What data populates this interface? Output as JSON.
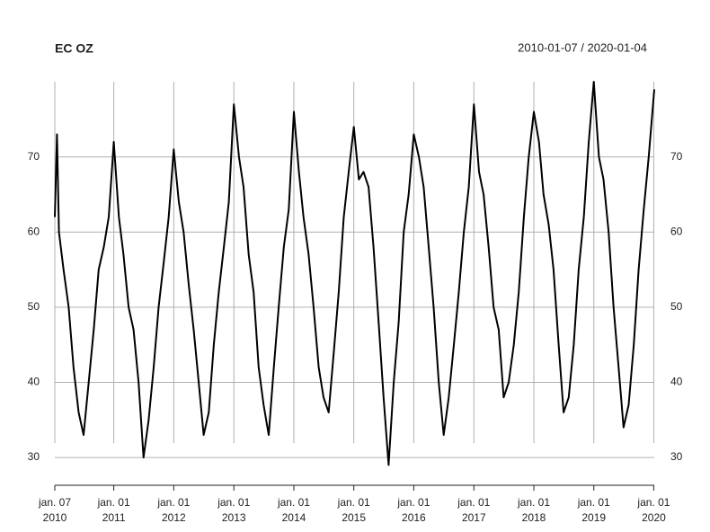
{
  "chart_data": {
    "type": "line",
    "title": "EC OZ",
    "subtitle": "2010-01-07 / 2020-01-04",
    "xlim": [
      "2010-01-07",
      "2020-01-04"
    ],
    "ylim": [
      26.3,
      80
    ],
    "yticks": [
      30,
      40,
      50,
      60,
      70
    ],
    "xticks": [
      {
        "value": "2010-01-07",
        "label": "jan. 07",
        "year": "2010"
      },
      {
        "value": "2011-01-01",
        "label": "jan. 01",
        "year": "2011"
      },
      {
        "value": "2012-01-01",
        "label": "jan. 01",
        "year": "2012"
      },
      {
        "value": "2013-01-01",
        "label": "jan. 01",
        "year": "2013"
      },
      {
        "value": "2014-01-01",
        "label": "jan. 01",
        "year": "2014"
      },
      {
        "value": "2015-01-01",
        "label": "jan. 01",
        "year": "2015"
      },
      {
        "value": "2016-01-01",
        "label": "jan. 01",
        "year": "2016"
      },
      {
        "value": "2017-01-01",
        "label": "jan. 01",
        "year": "2017"
      },
      {
        "value": "2018-01-01",
        "label": "jan. 01",
        "year": "2018"
      },
      {
        "value": "2019-01-01",
        "label": "jan. 01",
        "year": "2019"
      },
      {
        "value": "2020-01-01",
        "label": "jan. 01",
        "year": "2020"
      }
    ],
    "grid": true,
    "color": "#000000",
    "x": [
      "2010-01-07",
      "2010-01-20",
      "2010-02-01",
      "2010-03-01",
      "2010-04-01",
      "2010-05-01",
      "2010-06-01",
      "2010-07-01",
      "2010-08-01",
      "2010-09-01",
      "2010-10-01",
      "2010-11-01",
      "2010-12-01",
      "2011-01-01",
      "2011-02-01",
      "2011-03-01",
      "2011-04-01",
      "2011-05-01",
      "2011-06-01",
      "2011-07-01",
      "2011-08-01",
      "2011-09-01",
      "2011-10-01",
      "2011-11-01",
      "2011-12-01",
      "2012-01-01",
      "2012-02-01",
      "2012-03-01",
      "2012-04-01",
      "2012-05-01",
      "2012-06-01",
      "2012-07-01",
      "2012-08-01",
      "2012-09-01",
      "2012-10-01",
      "2012-11-01",
      "2012-12-01",
      "2013-01-01",
      "2013-02-01",
      "2013-03-01",
      "2013-04-01",
      "2013-05-01",
      "2013-06-01",
      "2013-07-01",
      "2013-08-01",
      "2013-09-01",
      "2013-10-01",
      "2013-11-01",
      "2013-12-01",
      "2014-01-01",
      "2014-02-01",
      "2014-03-01",
      "2014-04-01",
      "2014-05-01",
      "2014-06-01",
      "2014-07-01",
      "2014-08-01",
      "2014-09-01",
      "2014-10-01",
      "2014-11-01",
      "2014-12-01",
      "2015-01-01",
      "2015-02-01",
      "2015-03-01",
      "2015-04-01",
      "2015-05-01",
      "2015-06-01",
      "2015-07-01",
      "2015-08-01",
      "2015-09-01",
      "2015-10-01",
      "2015-11-01",
      "2015-12-01",
      "2016-01-01",
      "2016-02-01",
      "2016-03-01",
      "2016-04-01",
      "2016-05-01",
      "2016-06-01",
      "2016-07-01",
      "2016-08-01",
      "2016-09-01",
      "2016-10-01",
      "2016-11-01",
      "2016-12-01",
      "2017-01-01",
      "2017-02-01",
      "2017-03-01",
      "2017-04-01",
      "2017-05-01",
      "2017-06-01",
      "2017-07-01",
      "2017-08-01",
      "2017-09-01",
      "2017-10-01",
      "2017-11-01",
      "2017-12-01",
      "2018-01-01",
      "2018-02-01",
      "2018-03-01",
      "2018-04-01",
      "2018-05-01",
      "2018-06-01",
      "2018-07-01",
      "2018-08-01",
      "2018-09-01",
      "2018-10-01",
      "2018-11-01",
      "2018-12-01",
      "2019-01-01",
      "2019-02-01",
      "2019-03-01",
      "2019-04-01",
      "2019-05-01",
      "2019-06-01",
      "2019-07-01",
      "2019-08-01",
      "2019-09-01",
      "2019-10-01",
      "2019-11-01",
      "2019-12-01",
      "2020-01-04"
    ],
    "values": [
      62,
      73,
      60,
      55,
      50,
      42,
      36,
      33,
      40,
      47,
      55,
      58,
      62,
      72,
      62,
      57,
      50,
      47,
      40,
      30,
      35,
      42,
      50,
      56,
      62,
      71,
      64,
      60,
      53,
      47,
      40,
      33,
      36,
      45,
      52,
      58,
      64,
      77,
      70,
      66,
      57,
      52,
      42,
      37,
      33,
      42,
      50,
      58,
      63,
      76,
      68,
      62,
      57,
      50,
      42,
      38,
      36,
      44,
      52,
      62,
      68,
      74,
      67,
      68,
      66,
      58,
      48,
      38,
      29,
      40,
      48,
      60,
      65,
      73,
      70,
      66,
      58,
      50,
      40,
      33,
      38,
      45,
      52,
      60,
      66,
      77,
      68,
      65,
      58,
      50,
      47,
      38,
      40,
      45,
      52,
      62,
      70,
      76,
      72,
      65,
      61,
      55,
      45,
      36,
      38,
      45,
      55,
      62,
      72,
      80,
      70,
      67,
      60,
      50,
      42,
      34,
      37,
      45,
      55,
      63,
      70,
      79
    ]
  }
}
